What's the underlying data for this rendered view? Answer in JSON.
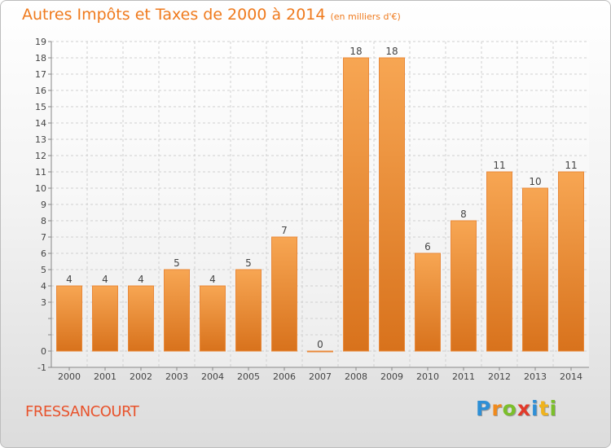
{
  "title": {
    "main": "Autres Impôts et Taxes de 2000 à 2014",
    "unit": "(en milliers d'€)"
  },
  "commune": "FRESSANCOURT",
  "logo": {
    "letters": [
      {
        "ch": "P",
        "color": "#2e8fd6"
      },
      {
        "ch": "r",
        "color": "#f08a1c"
      },
      {
        "ch": "o",
        "color": "#7bbf2a"
      },
      {
        "ch": "x",
        "color": "#e23a2a"
      },
      {
        "ch": "i",
        "color": "#2e8fd6"
      },
      {
        "ch": "t",
        "color": "#f0b31c"
      },
      {
        "ch": "i",
        "color": "#7bbf2a"
      }
    ]
  },
  "colors": {
    "bar_top": "#f7a653",
    "bar_bottom": "#d8721c",
    "bar_edge": "#e9893a",
    "grid": "#d0d0d0",
    "axis_text": "#444444"
  },
  "chart_data": {
    "type": "bar",
    "categories": [
      "2000",
      "2001",
      "2002",
      "2003",
      "2004",
      "2005",
      "2006",
      "2007",
      "2008",
      "2009",
      "2010",
      "2011",
      "2012",
      "2013",
      "2014"
    ],
    "values": [
      4,
      4,
      4,
      5,
      4,
      5,
      7,
      0,
      18,
      18,
      6,
      8,
      11,
      10,
      11
    ],
    "data_labels": [
      "4",
      "4",
      "4",
      "5",
      "4",
      "5",
      "7",
      "0",
      "18",
      "18",
      "6",
      "8",
      "11",
      "10",
      "11"
    ],
    "yticks": [
      -1,
      0,
      1,
      2,
      3,
      4,
      5,
      6,
      7,
      8,
      9,
      10,
      11,
      12,
      13,
      14,
      15,
      16,
      17,
      18,
      19
    ],
    "ytick_labels": [
      "-1",
      "0",
      "",
      "",
      "3",
      "4",
      "5",
      "6",
      "7",
      "8",
      "9",
      "10",
      "11",
      "12",
      "13",
      "14",
      "15",
      "16",
      "17",
      "18",
      "19"
    ],
    "ylim": [
      -1,
      19
    ],
    "grid": true,
    "xlabel": "",
    "ylabel": ""
  }
}
